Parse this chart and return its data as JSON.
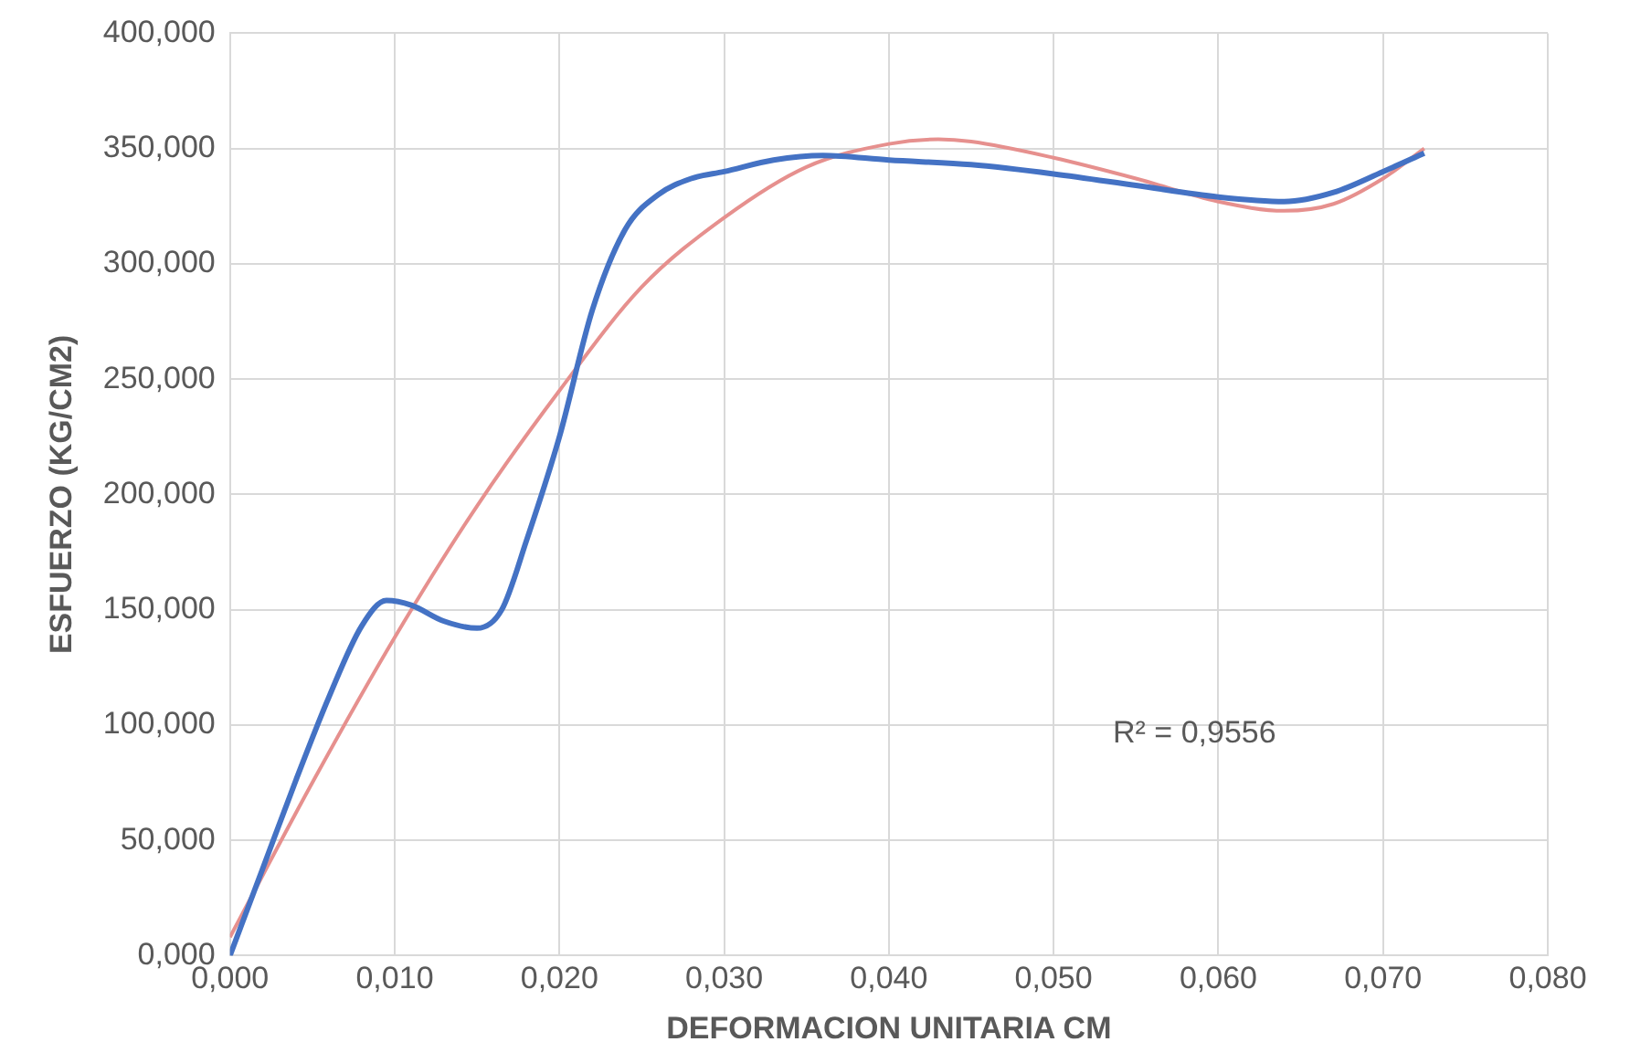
{
  "chart_data": {
    "type": "line",
    "xlabel": "DEFORMACION UNITARIA CM",
    "ylabel": "ESFUERZO (KG/CM2)",
    "series": [
      {
        "color": "#4472c4",
        "x": [
          0,
          0.002,
          0.004,
          0.006,
          0.008,
          0.0095,
          0.011,
          0.013,
          0.015,
          0.0165,
          0.018,
          0.02,
          0.022,
          0.024,
          0.026,
          0.028,
          0.03,
          0.033,
          0.036,
          0.04,
          0.045,
          0.05,
          0.055,
          0.06,
          0.064,
          0.067,
          0.07,
          0.0725
        ],
        "values": [
          0,
          38,
          76,
          112,
          143,
          154,
          152,
          145,
          142,
          150,
          180,
          225,
          280,
          315,
          330,
          337,
          340,
          345,
          347,
          345,
          343,
          339,
          334,
          329,
          327,
          331,
          340,
          348
        ]
      },
      {
        "color": "#e6908e",
        "x": [
          0,
          0.005,
          0.01,
          0.015,
          0.02,
          0.025,
          0.03,
          0.035,
          0.04,
          0.043,
          0.045,
          0.05,
          0.055,
          0.06,
          0.064,
          0.067,
          0.07,
          0.0725
        ],
        "values": [
          8,
          75,
          138,
          195,
          245,
          290,
          320,
          342,
          352,
          354,
          353,
          346,
          337,
          327,
          323,
          326,
          337,
          350
        ]
      }
    ],
    "xlim": [
      0,
      0.08
    ],
    "xticks": [
      {
        "value": 0,
        "label": "0,000"
      },
      {
        "value": 0.01,
        "label": "0,010"
      },
      {
        "value": 0.02,
        "label": "0,020"
      },
      {
        "value": 0.03,
        "label": "0,030"
      },
      {
        "value": 0.04,
        "label": "0,040"
      },
      {
        "value": 0.05,
        "label": "0,050"
      },
      {
        "value": 0.06,
        "label": "0,060"
      },
      {
        "value": 0.07,
        "label": "0,070"
      },
      {
        "value": 0.08,
        "label": "0,080"
      }
    ],
    "ylim": [
      0,
      400
    ],
    "yticks": [
      {
        "value": 0,
        "label": "0,000"
      },
      {
        "value": 50,
        "label": "50,000"
      },
      {
        "value": 100,
        "label": "100,000"
      },
      {
        "value": 150,
        "label": "150,000"
      },
      {
        "value": 200,
        "label": "200,000"
      },
      {
        "value": 250,
        "label": "250,000"
      },
      {
        "value": 300,
        "label": "300,000"
      },
      {
        "value": 350,
        "label": "350,000"
      },
      {
        "value": 400,
        "label": "400,000"
      }
    ],
    "grid": true,
    "marker": "none",
    "line_style": "solid",
    "annotations": [
      "R² = 0,9556"
    ]
  }
}
